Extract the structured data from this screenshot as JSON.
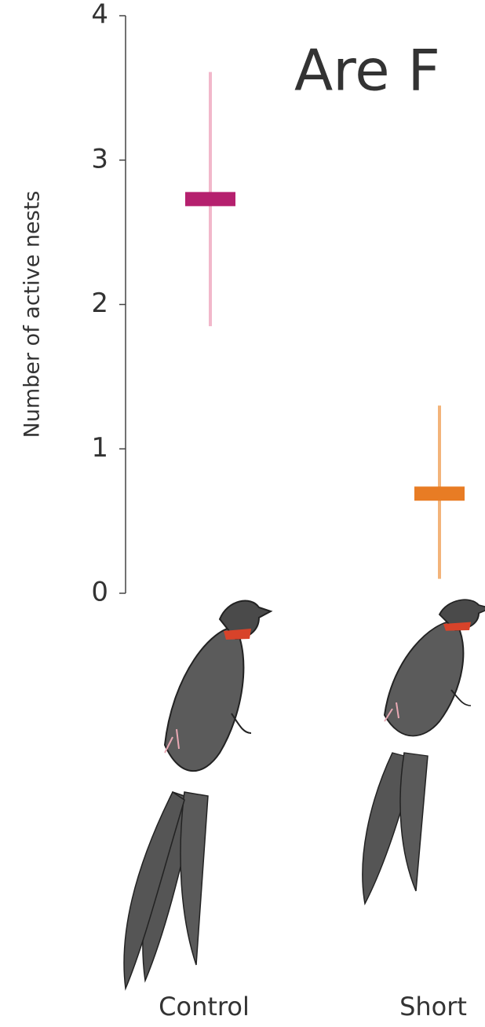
{
  "chart_data": {
    "type": "errorbar",
    "title": "Are F",
    "y_label": "Number of active nests",
    "categories": [
      "Control",
      "Short"
    ],
    "values": [
      2.73,
      0.69
    ],
    "lower": [
      1.85,
      0.1
    ],
    "upper": [
      3.61,
      1.3
    ],
    "colors": [
      "#b5206e",
      "#e87c24"
    ],
    "whisker_colors": [
      "#f2b8cb",
      "#f3b47a"
    ],
    "ylim": [
      0,
      4
    ],
    "yticks": [
      0,
      1,
      2,
      3,
      4
    ]
  }
}
